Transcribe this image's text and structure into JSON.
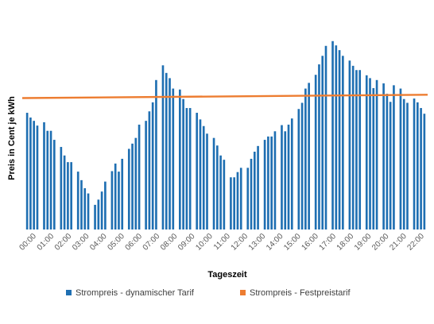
{
  "chart_data": {
    "type": "bar",
    "title": "",
    "xlabel": "Tageszeit",
    "ylabel": "Preis in Cent je kWh",
    "grid": false,
    "legend_position": "bottom",
    "tick_labels": [
      "00:00",
      "01:00",
      "02:00",
      "03:00",
      "04:00",
      "05:00",
      "06:00",
      "07:00",
      "08:00",
      "09:00",
      "10:00",
      "11:00",
      "12:00",
      "13:00",
      "14:00",
      "15:00",
      "16:00",
      "17:00",
      "18:00",
      "19:00",
      "20:00",
      "21:00",
      "22:00"
    ],
    "ylim": [
      0,
      40
    ],
    "series": [
      {
        "name": "Strompreis - dynamischer Tarif",
        "kind": "bar",
        "color": "#1f6fb2",
        "values": [
          24.6,
          23.6,
          22.9,
          21.9,
          null,
          22.6,
          20.8,
          20.8,
          18.9,
          null,
          17.4,
          15.6,
          14.2,
          14.2,
          null,
          12.2,
          10.4,
          8.7,
          7.6,
          null,
          5.2,
          6.3,
          8.0,
          10.1,
          null,
          12.3,
          13.9,
          12.2,
          14.9,
          null,
          17.0,
          18.1,
          19.3,
          22.1,
          null,
          22.9,
          24.9,
          26.8,
          31.5,
          null,
          34.6,
          33.0,
          31.9,
          29.7,
          null,
          29.5,
          27.5,
          25.6,
          25.6,
          null,
          24.6,
          23.2,
          21.8,
          20.2,
          null,
          19.3,
          17.7,
          15.6,
          14.7,
          null,
          11.0,
          11.0,
          12.1,
          13.0,
          null,
          13.0,
          14.9,
          16.4,
          17.6,
          null,
          18.9,
          19.6,
          19.6,
          20.7,
          null,
          22.0,
          20.7,
          22.1,
          23.4,
          null,
          25.4,
          26.7,
          29.7,
          30.9,
          null,
          32.6,
          34.8,
          36.6,
          38.7,
          null,
          39.7,
          38.8,
          37.8,
          36.6,
          null,
          35.6,
          34.5,
          33.6,
          33.6,
          null,
          32.5,
          31.9,
          29.8,
          31.5,
          null,
          30.8,
          28.6,
          26.9,
          30.4,
          null,
          29.7,
          27.5,
          26.7,
          null,
          27.6,
          26.8,
          25.6,
          24.4
        ]
      },
      {
        "name": "Strompreis - Festpreistarif",
        "kind": "line",
        "color": "#ed7d31",
        "start_value": 27.7,
        "end_value": 28.4
      }
    ]
  }
}
